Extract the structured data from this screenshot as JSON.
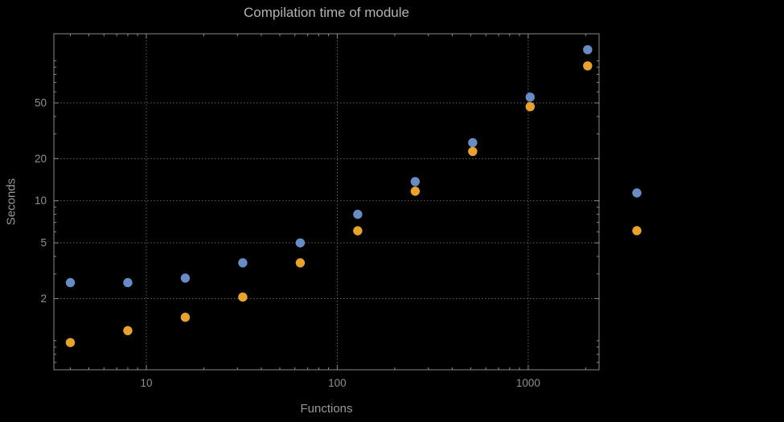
{
  "figure": {
    "title": "Compilation time of module",
    "xlabel": "Functions",
    "ylabel": "Seconds"
  },
  "colors": {
    "background": "#000000",
    "frame": "#8a8a8a",
    "grid": "#646464",
    "tick_label": "#8f8f8f",
    "title_text": "#b3b3b3",
    "axis_label_text": "#979797",
    "series_blue": "#688cc3",
    "series_orange": "#e6a32f"
  },
  "chart_data": {
    "type": "scatter",
    "title": "Compilation time of module",
    "xlabel": "Functions",
    "ylabel": "Seconds",
    "x_scale": "log",
    "y_scale": "log",
    "xlim": [
      3.28,
      2350
    ],
    "ylim": [
      0.62,
      156
    ],
    "x_ticks": [
      10,
      100,
      1000
    ],
    "x_tick_labels": [
      "10",
      "100",
      "1000"
    ],
    "y_ticks": [
      2,
      5,
      10,
      20,
      50
    ],
    "y_tick_labels": [
      "2",
      "5",
      "10",
      "20",
      "50"
    ],
    "grid": true,
    "x": [
      4,
      8,
      16,
      32,
      64,
      128,
      256,
      512,
      1024,
      2048
    ],
    "series": [
      {
        "name": "series-1-blue",
        "color": "#688cc3",
        "values": [
          2.6,
          2.6,
          2.8,
          3.6,
          5.0,
          8.0,
          13.7,
          26,
          55,
          120
        ]
      },
      {
        "name": "series-2-orange",
        "color": "#e6a32f",
        "values": [
          0.97,
          1.18,
          1.47,
          2.05,
          3.6,
          6.1,
          11.7,
          22.5,
          47,
          92
        ]
      }
    ],
    "legend": {
      "position": "right-of-frame",
      "entries": [
        {
          "series": "series-1-blue",
          "color": "#688cc3",
          "label": ""
        },
        {
          "series": "series-2-orange",
          "color": "#e6a32f",
          "label": ""
        }
      ]
    }
  }
}
